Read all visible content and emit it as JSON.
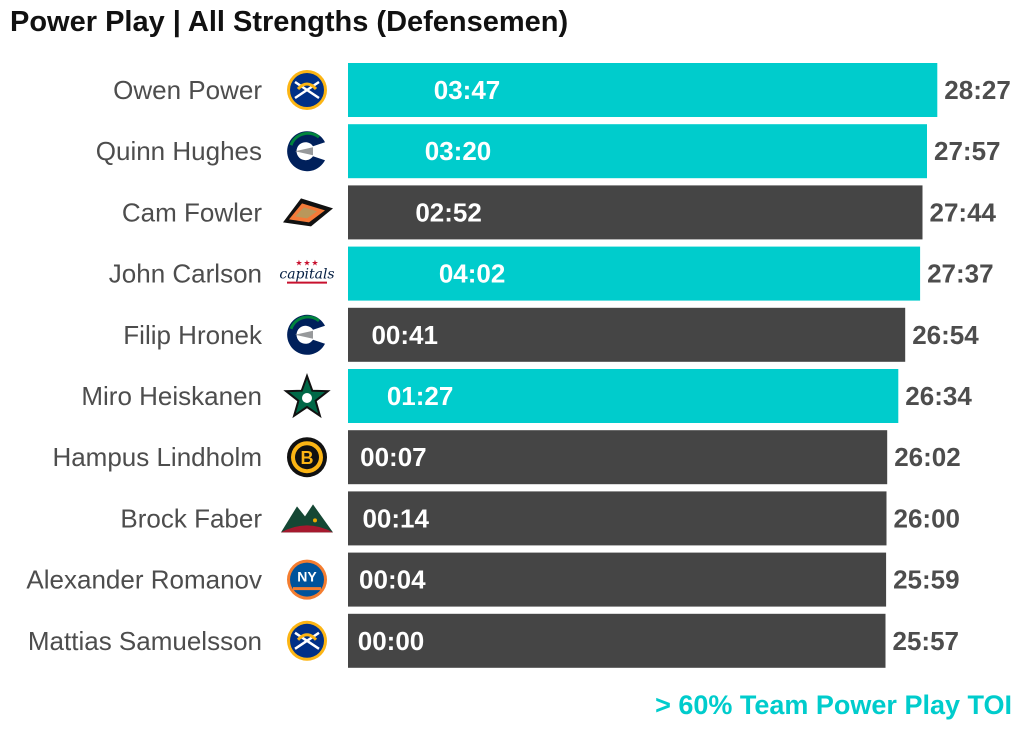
{
  "title": "Power Play | All Strengths (Defensemen)",
  "footnote": "> 60% Team Power Play TOI",
  "colors": {
    "highlight": "#00cccc",
    "default": "#454545",
    "label": "#4d4d4d"
  },
  "chart_data": {
    "type": "bar",
    "orientation": "horizontal",
    "title": "Power Play | All Strengths (Defensemen)",
    "xlim_minutes": [
      0,
      29
    ],
    "players": [
      {
        "name": "Owen Power",
        "team_logo": "sabres-logo-icon",
        "toi": "28:27",
        "pp_toi": "03:47",
        "toi_minutes": 28.45,
        "pp_minutes": 3.783,
        "highlight": true
      },
      {
        "name": "Quinn Hughes",
        "team_logo": "canucks-logo-icon",
        "toi": "27:57",
        "pp_toi": "03:20",
        "toi_minutes": 27.95,
        "pp_minutes": 3.333,
        "highlight": true
      },
      {
        "name": "Cam Fowler",
        "team_logo": "ducks-logo-icon",
        "toi": "27:44",
        "pp_toi": "02:52",
        "toi_minutes": 27.733,
        "pp_minutes": 2.867,
        "highlight": false
      },
      {
        "name": "John Carlson",
        "team_logo": "capitals-logo-icon",
        "toi": "27:37",
        "pp_toi": "04:02",
        "toi_minutes": 27.617,
        "pp_minutes": 4.033,
        "highlight": true
      },
      {
        "name": "Filip Hronek",
        "team_logo": "canucks-logo-icon",
        "toi": "26:54",
        "pp_toi": "00:41",
        "toi_minutes": 26.9,
        "pp_minutes": 0.683,
        "highlight": false
      },
      {
        "name": "Miro Heiskanen",
        "team_logo": "stars-logo-icon",
        "toi": "26:34",
        "pp_toi": "01:27",
        "toi_minutes": 26.567,
        "pp_minutes": 1.45,
        "highlight": true
      },
      {
        "name": "Hampus Lindholm",
        "team_logo": "bruins-logo-icon",
        "toi": "26:02",
        "pp_toi": "00:07",
        "toi_minutes": 26.033,
        "pp_minutes": 0.117,
        "highlight": false
      },
      {
        "name": "Brock Faber",
        "team_logo": "wild-logo-icon",
        "toi": "26:00",
        "pp_toi": "00:14",
        "toi_minutes": 26.0,
        "pp_minutes": 0.233,
        "highlight": false
      },
      {
        "name": "Alexander Romanov",
        "team_logo": "islanders-logo-icon",
        "toi": "25:59",
        "pp_toi": "00:04",
        "toi_minutes": 25.983,
        "pp_minutes": 0.067,
        "highlight": false
      },
      {
        "name": "Mattias Samuelsson",
        "team_logo": "sabres-logo-icon",
        "toi": "25:57",
        "pp_toi": "00:00",
        "toi_minutes": 25.95,
        "pp_minutes": 0.0,
        "highlight": false
      }
    ]
  }
}
